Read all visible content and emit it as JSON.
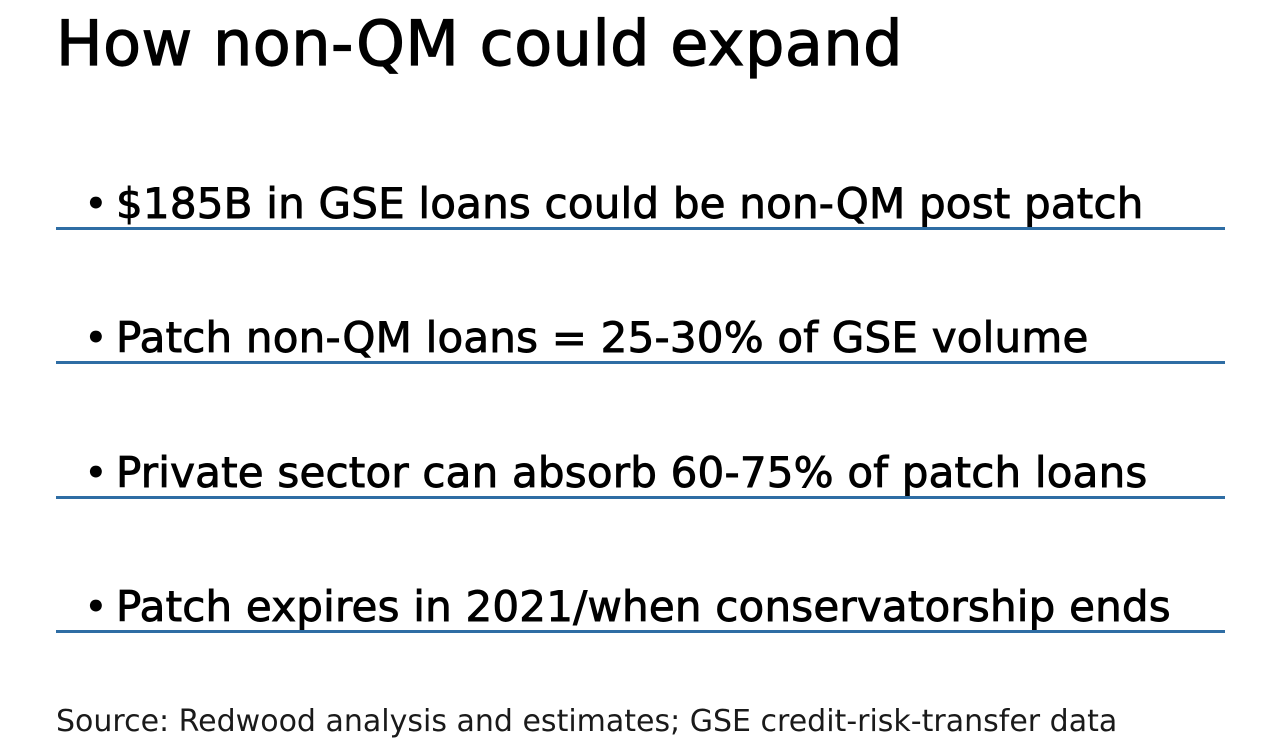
{
  "slide": {
    "title": "How non-QM could expand",
    "bullets": [
      "$185B in GSE loans could be non-QM post patch",
      "Patch non-QM loans = 25-30% of GSE volume",
      "Private sector can absorb 60-75% of patch loans",
      "Patch expires in 2021/when conservatorship ends"
    ],
    "bullet_symbol": "•",
    "source": "Source: Redwood analysis and estimates; GSE credit-risk-transfer data",
    "divider_color": "#2e6da4"
  }
}
